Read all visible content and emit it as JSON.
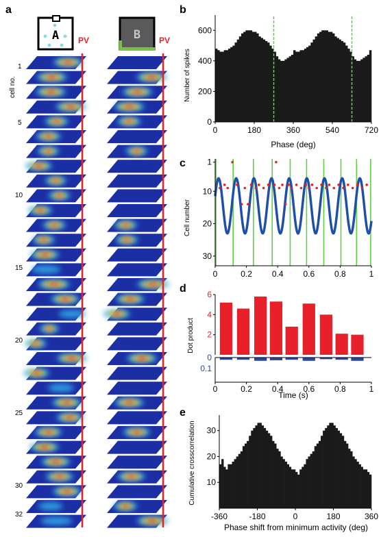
{
  "panel_a": {
    "letter": "a",
    "cell_axis_label": "cell no.",
    "cell_labels": [
      "1",
      "5",
      "10",
      "15",
      "20",
      "25",
      "30",
      "32"
    ],
    "env_a_label": "A",
    "env_b_label": "B",
    "pv_label": "PV",
    "n_cells": 32
  },
  "chart_data": [
    {
      "id": "b",
      "letter": "b",
      "type": "bar",
      "xlabel": "Phase (deg)",
      "ylabel": "Number of spikes",
      "xlim": [
        0,
        720
      ],
      "ylim": [
        0,
        700
      ],
      "xticks": [
        "0",
        "180",
        "360",
        "540",
        "720"
      ],
      "yticks": [
        "0",
        "200",
        "400",
        "600"
      ],
      "bin_width_deg": 10,
      "values": [
        480,
        470,
        460,
        460,
        470,
        470,
        480,
        490,
        500,
        520,
        540,
        560,
        580,
        590,
        600,
        600,
        600,
        590,
        590,
        580,
        560,
        550,
        540,
        530,
        520,
        500,
        480,
        460,
        430,
        410,
        400,
        400,
        410,
        420,
        430,
        440,
        470,
        460,
        460,
        470,
        470,
        480,
        490,
        500,
        520,
        540,
        560,
        580,
        590,
        600,
        600,
        600,
        590,
        590,
        580,
        560,
        550,
        540,
        530,
        520,
        500,
        480,
        460,
        430,
        410,
        400,
        400,
        410,
        420,
        430,
        440,
        470
      ],
      "markers_deg": [
        270,
        630
      ],
      "marker_color": "#5fd048"
    },
    {
      "id": "c",
      "letter": "c",
      "type": "scatter",
      "xlabel": "",
      "ylabel": "Cell number",
      "xlim": [
        0,
        1
      ],
      "ylim": [
        33,
        0
      ],
      "xticks": [
        "0",
        "0.2",
        "0.4",
        "0.6",
        "0.8",
        "1"
      ],
      "yticks": [
        "1",
        "10",
        "20",
        "30"
      ],
      "green_lines_x": [
        0.005,
        0.115,
        0.245,
        0.365,
        0.48,
        0.585,
        0.695,
        0.805,
        0.905,
        0.995
      ],
      "sine": {
        "period_s": 0.113,
        "center_cell": 14.5,
        "amplitude_cells": 8.5,
        "phase_s": 0.05,
        "color": "#1f4fa8"
      },
      "points": [
        [
          0.03,
          9
        ],
        [
          0.06,
          8
        ],
        [
          0.08,
          9
        ],
        [
          0.11,
          1
        ],
        [
          0.14,
          8
        ],
        [
          0.17,
          14
        ],
        [
          0.19,
          9
        ],
        [
          0.21,
          14
        ],
        [
          0.23,
          8
        ],
        [
          0.26,
          9
        ],
        [
          0.28,
          8
        ],
        [
          0.31,
          9
        ],
        [
          0.34,
          8
        ],
        [
          0.38,
          8
        ],
        [
          0.39,
          1
        ],
        [
          0.41,
          9
        ],
        [
          0.43,
          8
        ],
        [
          0.45,
          14
        ],
        [
          0.47,
          8
        ],
        [
          0.49,
          9
        ],
        [
          0.52,
          8
        ],
        [
          0.55,
          9
        ],
        [
          0.58,
          8
        ],
        [
          0.6,
          9
        ],
        [
          0.62,
          8
        ],
        [
          0.65,
          9
        ],
        [
          0.68,
          8
        ],
        [
          0.71,
          9
        ],
        [
          0.73,
          8
        ],
        [
          0.76,
          9
        ],
        [
          0.79,
          8
        ],
        [
          0.82,
          9
        ],
        [
          0.85,
          8
        ],
        [
          0.88,
          9
        ],
        [
          0.91,
          8
        ],
        [
          0.94,
          9
        ],
        [
          0.97,
          8
        ]
      ],
      "point_color": "#e8202a"
    },
    {
      "id": "d",
      "letter": "d",
      "type": "bar",
      "xlabel": "Time (s)",
      "ylabel": "Dot product",
      "xlim": [
        0,
        1
      ],
      "xticks": [
        "0",
        "0.2",
        "0.4",
        "0.6",
        "0.8",
        "1"
      ],
      "top": {
        "ylim": [
          0,
          6
        ],
        "yticks": [
          "6",
          "4",
          "2"
        ],
        "color": "#e8202a",
        "values": [
          5.2,
          4.6,
          5.8,
          5.3,
          2.8,
          5.1,
          4.0,
          2.1,
          2.0
        ]
      },
      "bottom": {
        "ylim": [
          0,
          0.1
        ],
        "yticks": [
          "0",
          "0.1"
        ],
        "color": "#2b45a8",
        "values": [
          0.02,
          0.02,
          0.03,
          0.025,
          0.02,
          0.03,
          0.015,
          0.02,
          0.03
        ]
      },
      "bar_centers": [
        0.07,
        0.18,
        0.29,
        0.39,
        0.49,
        0.6,
        0.71,
        0.81,
        0.91
      ]
    },
    {
      "id": "e",
      "letter": "e",
      "type": "bar",
      "xlabel": "Phase shift from minimum activity (deg)",
      "ylabel": "Cumulative crosscorrelation",
      "xlim": [
        -360,
        360
      ],
      "ylim": [
        0,
        36
      ],
      "xticks": [
        "-360",
        "-180",
        "0",
        "180",
        "360"
      ],
      "yticks": [
        "10",
        "20",
        "30"
      ],
      "bin_width_deg": 10,
      "values": [
        17,
        19,
        16,
        15,
        17,
        17,
        18,
        19,
        20,
        21,
        22,
        24,
        25,
        26,
        28,
        30,
        31,
        32,
        33,
        33,
        32,
        31,
        30,
        29,
        28,
        26,
        25,
        23,
        22,
        20,
        19,
        18,
        17,
        16,
        15,
        15,
        14,
        13,
        15,
        16,
        17,
        19,
        20,
        21,
        22,
        24,
        25,
        26,
        28,
        30,
        31,
        32,
        33,
        33,
        32,
        31,
        30,
        29,
        28,
        26,
        25,
        23,
        22,
        20,
        19,
        18,
        17,
        16,
        15,
        15,
        14,
        13
      ]
    }
  ]
}
